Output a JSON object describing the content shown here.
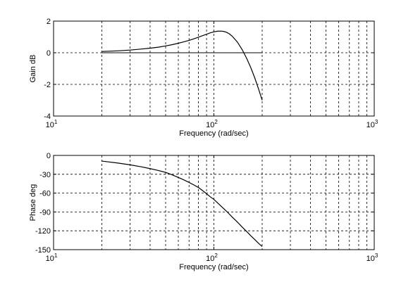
{
  "chart_data": [
    {
      "type": "line",
      "xlabel": "Frequency (rad/sec)",
      "ylabel": "Gain dB",
      "xscale": "log",
      "xlim": [
        10,
        1000
      ],
      "ylim": [
        -4,
        2
      ],
      "yticks": [
        -4,
        -2,
        0,
        2
      ],
      "yticklabels": [
        "-4",
        "-2",
        "0",
        "2"
      ],
      "xticklabels": [
        {
          "base": "10",
          "exp": "1"
        },
        {
          "base": "10",
          "exp": "2"
        },
        {
          "base": "10",
          "exp": "3"
        }
      ],
      "grid": true,
      "reference_line": {
        "x": [
          20,
          200
        ],
        "y": 0
      },
      "series": [
        {
          "color": "#000000",
          "x": [
            20,
            25,
            30,
            35,
            40,
            45,
            50,
            55,
            60,
            65,
            70,
            75,
            80,
            85,
            90,
            95,
            100,
            105,
            110,
            115,
            120,
            125,
            130,
            140,
            150,
            160,
            170,
            180,
            190,
            200
          ],
          "y": [
            0.08,
            0.12,
            0.17,
            0.23,
            0.29,
            0.35,
            0.43,
            0.51,
            0.6,
            0.69,
            0.78,
            0.88,
            0.98,
            1.08,
            1.17,
            1.26,
            1.32,
            1.36,
            1.37,
            1.35,
            1.29,
            1.19,
            1.05,
            0.68,
            0.2,
            -0.35,
            -0.95,
            -1.6,
            -2.3,
            -3.0
          ]
        }
      ]
    },
    {
      "type": "line",
      "xlabel": "Frequency (rad/sec)",
      "ylabel": "Phase deg",
      "xscale": "log",
      "xlim": [
        10,
        1000
      ],
      "ylim": [
        -150,
        0
      ],
      "yticks": [
        -150,
        -120,
        -90,
        -60,
        -30,
        0
      ],
      "yticklabels": [
        "-150",
        "-120",
        "-90",
        "-60",
        "-30",
        "0"
      ],
      "xticklabels": [
        {
          "base": "10",
          "exp": "1"
        },
        {
          "base": "10",
          "exp": "2"
        },
        {
          "base": "10",
          "exp": "3"
        }
      ],
      "grid": true,
      "series": [
        {
          "color": "#000000",
          "x": [
            20,
            25,
            30,
            35,
            40,
            45,
            50,
            55,
            60,
            65,
            70,
            75,
            80,
            85,
            90,
            95,
            100,
            110,
            120,
            130,
            140,
            150,
            160,
            170,
            180,
            190,
            200
          ],
          "y": [
            -9,
            -12,
            -15,
            -18,
            -21,
            -24,
            -27,
            -31,
            -35,
            -39,
            -43,
            -47,
            -51,
            -56,
            -61,
            -66,
            -70,
            -80,
            -89,
            -98,
            -106,
            -114,
            -121,
            -128,
            -134,
            -140,
            -145
          ]
        }
      ]
    }
  ]
}
